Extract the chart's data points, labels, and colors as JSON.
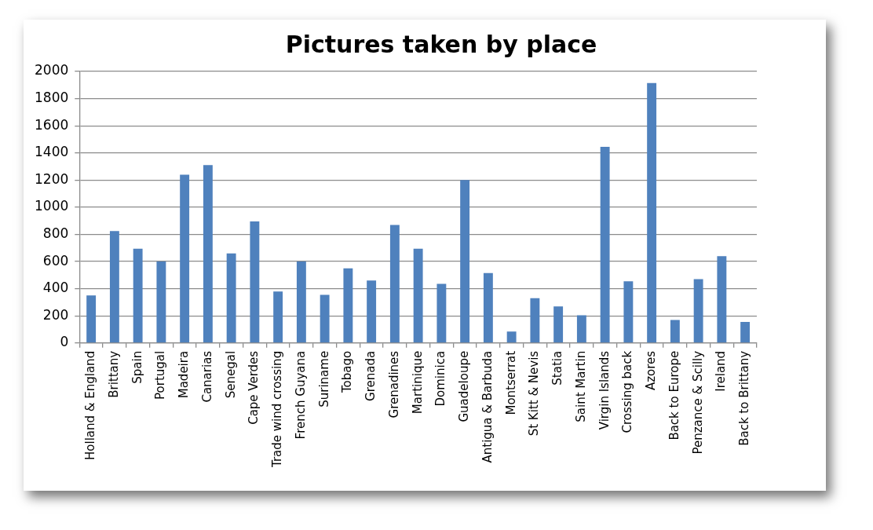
{
  "chart_data": {
    "type": "bar",
    "title": "Pictures taken by place",
    "categories": [
      "Holland & England",
      "Brittany",
      "Spain",
      "Portugal",
      "Madeira",
      "Canarias",
      "Senegal",
      "Cape Verdes",
      "Trade wind crossing",
      "French Guyana",
      "Suriname",
      "Tobago",
      "Grenada",
      "Grenadines",
      "Martinique",
      "Dominica",
      "Guadeloupe",
      "Antigua & Barbuda",
      "Montserrat",
      "St Kitt & Nevis",
      "Statia",
      "Saint Martin",
      "Virgin Islands",
      "Crossing back",
      "Azores",
      "Back to Europe",
      "Penzance & Scilly",
      "Ireland",
      "Back to Brittany"
    ],
    "values": [
      350,
      825,
      695,
      600,
      1240,
      1310,
      660,
      895,
      380,
      600,
      355,
      550,
      460,
      870,
      695,
      435,
      1200,
      515,
      85,
      330,
      270,
      205,
      1445,
      455,
      1915,
      170,
      470,
      640,
      155
    ],
    "color": "#4f81bd",
    "ylim": [
      0,
      2000
    ],
    "yticks": [
      0,
      200,
      400,
      600,
      800,
      1000,
      1200,
      1400,
      1600,
      1800,
      2000
    ],
    "grid": "y",
    "legend": false
  }
}
